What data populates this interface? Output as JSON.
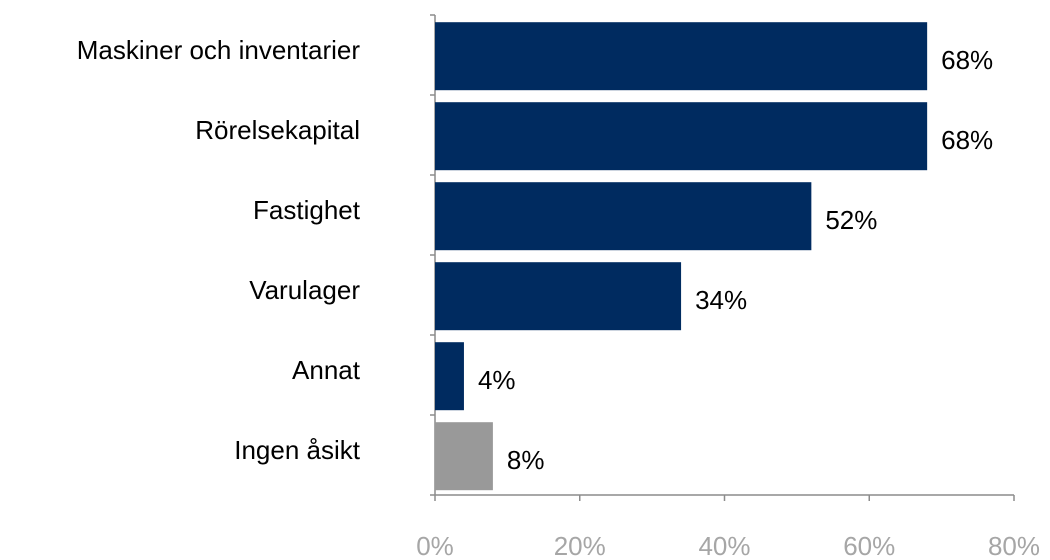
{
  "chart_data": {
    "type": "bar",
    "orientation": "horizontal",
    "categories": [
      "Maskiner och inventarier",
      "Rörelsekapital",
      "Fastighet",
      "Varulager",
      "Annat",
      "Ingen åsikt"
    ],
    "values": [
      68,
      68,
      52,
      34,
      4,
      8
    ],
    "value_labels": [
      "68%",
      "68%",
      "52%",
      "34%",
      "4%",
      "8%"
    ],
    "colors": [
      "#002b60",
      "#002b60",
      "#002b60",
      "#002b60",
      "#002b60",
      "#999999"
    ],
    "xlim": [
      0,
      80
    ],
    "xticks": [
      {
        "value": 0,
        "label": "0%"
      },
      {
        "value": 20,
        "label": "20%"
      },
      {
        "value": 40,
        "label": "40%"
      },
      {
        "value": 60,
        "label": "60%"
      },
      {
        "value": 80,
        "label": "80%"
      }
    ],
    "grid": false
  }
}
